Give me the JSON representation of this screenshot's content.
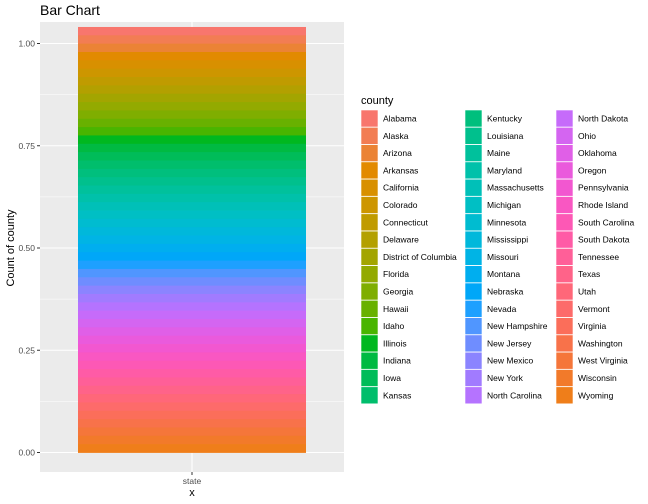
{
  "chart_data": {
    "type": "bar",
    "title": "Bar Chart",
    "xlabel": "x",
    "ylabel": "Count of county",
    "categories": [
      "state"
    ],
    "ylim": [
      0,
      1
    ],
    "yticks": [
      "0.00",
      "0.25",
      "0.50",
      "0.75",
      "1.00"
    ],
    "ytick_values": [
      0,
      0.25,
      0.5,
      0.75,
      1.0
    ],
    "grid": true,
    "legend_title": "county",
    "legend_position": "right",
    "series": [
      {
        "name": "Alabama",
        "color": "#F8766D",
        "values": [
          0.0204
        ]
      },
      {
        "name": "Alaska",
        "color": "#F27D53",
        "values": [
          0.0204
        ]
      },
      {
        "name": "Arizona",
        "color": "#EB8335",
        "values": [
          0.0204
        ]
      },
      {
        "name": "Arkansas",
        "color": "#E28A00",
        "values": [
          0.0204
        ]
      },
      {
        "name": "California",
        "color": "#D89000",
        "values": [
          0.0204
        ]
      },
      {
        "name": "Colorado",
        "color": "#CD9600",
        "values": [
          0.0204
        ]
      },
      {
        "name": "Connecticut",
        "color": "#C09B00",
        "values": [
          0.0204
        ]
      },
      {
        "name": "Delaware",
        "color": "#B3A000",
        "values": [
          0.0204
        ]
      },
      {
        "name": "District of Columbia",
        "color": "#A3A500",
        "values": [
          0.0204
        ]
      },
      {
        "name": "Florida",
        "color": "#93AA00",
        "values": [
          0.0204
        ]
      },
      {
        "name": "Georgia",
        "color": "#7FAE00",
        "values": [
          0.0204
        ]
      },
      {
        "name": "Hawaii",
        "color": "#68B100",
        "values": [
          0.0204
        ]
      },
      {
        "name": "Idaho",
        "color": "#49B500",
        "values": [
          0.0204
        ]
      },
      {
        "name": "Illinois",
        "color": "#00B81F",
        "values": [
          0.0204
        ]
      },
      {
        "name": "Indiana",
        "color": "#00BA42",
        "values": [
          0.0204
        ]
      },
      {
        "name": "Iowa",
        "color": "#00BC59",
        "values": [
          0.0204
        ]
      },
      {
        "name": "Kansas",
        "color": "#00BE6C",
        "values": [
          0.0204
        ]
      },
      {
        "name": "Kentucky",
        "color": "#00BF7D",
        "values": [
          0.0204
        ]
      },
      {
        "name": "Louisiana",
        "color": "#00C08D",
        "values": [
          0.0204
        ]
      },
      {
        "name": "Maine",
        "color": "#00C19C",
        "values": [
          0.0204
        ]
      },
      {
        "name": "Maryland",
        "color": "#00C1AA",
        "values": [
          0.0204
        ]
      },
      {
        "name": "Massachusetts",
        "color": "#00C0B8",
        "values": [
          0.0204
        ]
      },
      {
        "name": "Michigan",
        "color": "#00BFC4",
        "values": [
          0.0204
        ]
      },
      {
        "name": "Minnesota",
        "color": "#00BCD0",
        "values": [
          0.0204
        ]
      },
      {
        "name": "Mississippi",
        "color": "#00B8DB",
        "values": [
          0.0204
        ]
      },
      {
        "name": "Missouri",
        "color": "#00B4E5",
        "values": [
          0.0204
        ]
      },
      {
        "name": "Montana",
        "color": "#00AEEF",
        "values": [
          0.0204
        ]
      },
      {
        "name": "Nebraska",
        "color": "#00A7F8",
        "values": [
          0.0204
        ]
      },
      {
        "name": "Nevada",
        "color": "#1EA0FF",
        "values": [
          0.0204
        ]
      },
      {
        "name": "New Hampshire",
        "color": "#5096FF",
        "values": [
          0.0204
        ]
      },
      {
        "name": "New Jersey",
        "color": "#6F8DFF",
        "values": [
          0.0204
        ]
      },
      {
        "name": "New Mexico",
        "color": "#8B84FF",
        "values": [
          0.0204
        ]
      },
      {
        "name": "New York",
        "color": "#A17BFF",
        "values": [
          0.0204
        ]
      },
      {
        "name": "North Carolina",
        "color": "#B573FF",
        "values": [
          0.0204
        ]
      },
      {
        "name": "North Dakota",
        "color": "#C66BFA",
        "values": [
          0.0204
        ]
      },
      {
        "name": "Ohio",
        "color": "#D465F1",
        "values": [
          0.0204
        ]
      },
      {
        "name": "Oklahoma",
        "color": "#E05FE7",
        "values": [
          0.0204
        ]
      },
      {
        "name": "Oregon",
        "color": "#EA5ADC",
        "values": [
          0.0204
        ]
      },
      {
        "name": "Pennsylvania",
        "color": "#F257D0",
        "values": [
          0.0204
        ]
      },
      {
        "name": "Rhode Island",
        "color": "#F957C2",
        "values": [
          0.0204
        ]
      },
      {
        "name": "South Carolina",
        "color": "#FD58B5",
        "values": [
          0.0204
        ]
      },
      {
        "name": "South Dakota",
        "color": "#FF5BA6",
        "values": [
          0.0204
        ]
      },
      {
        "name": "Tennessee",
        "color": "#FF5F98",
        "values": [
          0.0204
        ]
      },
      {
        "name": "Texas",
        "color": "#FF6389",
        "values": [
          0.0204
        ]
      },
      {
        "name": "Utah",
        "color": "#FF6779",
        "values": [
          0.0204
        ]
      },
      {
        "name": "Vermont",
        "color": "#FD6B6A",
        "values": [
          0.0204
        ]
      },
      {
        "name": "Virginia",
        "color": "#FB6E5A",
        "values": [
          0.0204
        ]
      },
      {
        "name": "Washington",
        "color": "#F8724A",
        "values": [
          0.0204
        ]
      },
      {
        "name": "West Virginia",
        "color": "#F5763A",
        "values": [
          0.0204
        ]
      },
      {
        "name": "Wisconsin",
        "color": "#F27A2A",
        "values": [
          0.0204
        ]
      },
      {
        "name": "Wyoming",
        "color": "#EF7E1A",
        "values": [
          0.0204
        ]
      }
    ]
  }
}
